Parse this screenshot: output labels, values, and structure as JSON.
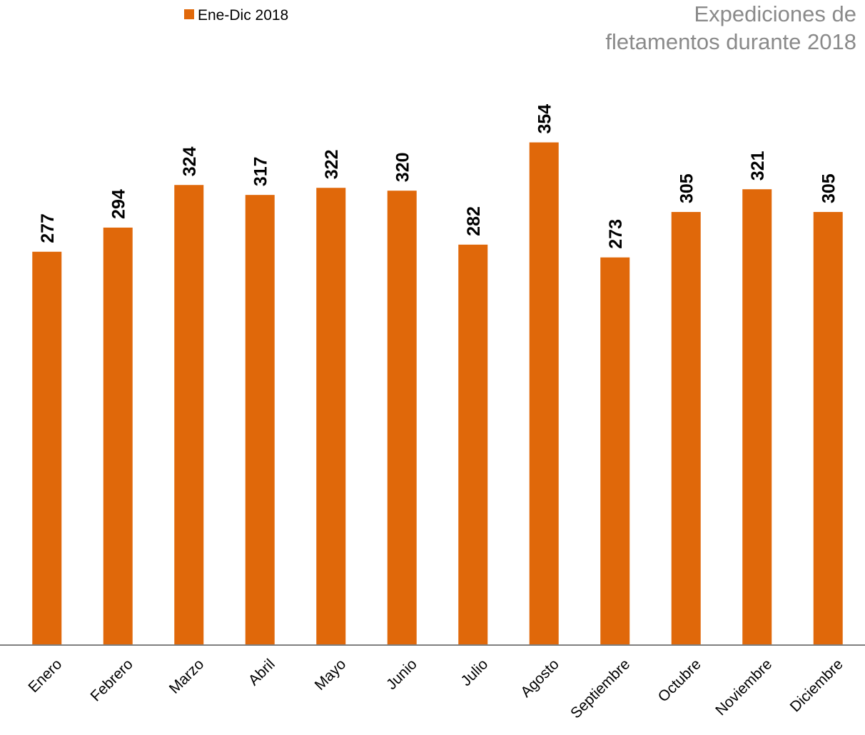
{
  "chart_data": {
    "type": "bar",
    "title_lines": [
      "Expediciones de",
      "fletamentos durante 2018"
    ],
    "categories": [
      "Enero",
      "Febrero",
      "Marzo",
      "Abril",
      "Mayo",
      "Junio",
      "Julio",
      "Agosto",
      "Septiembre",
      "Octubre",
      "Noviembre",
      "Diciembre"
    ],
    "series": [
      {
        "name": "Ene-Dic 2018",
        "color": "#E0680A",
        "values": [
          277,
          294,
          324,
          317,
          322,
          320,
          282,
          354,
          273,
          305,
          321,
          305
        ]
      }
    ],
    "xlabel": "",
    "ylabel": "",
    "ylim": [
      0,
      370
    ],
    "grid": false,
    "legend": "top-left",
    "data_labels": true
  }
}
